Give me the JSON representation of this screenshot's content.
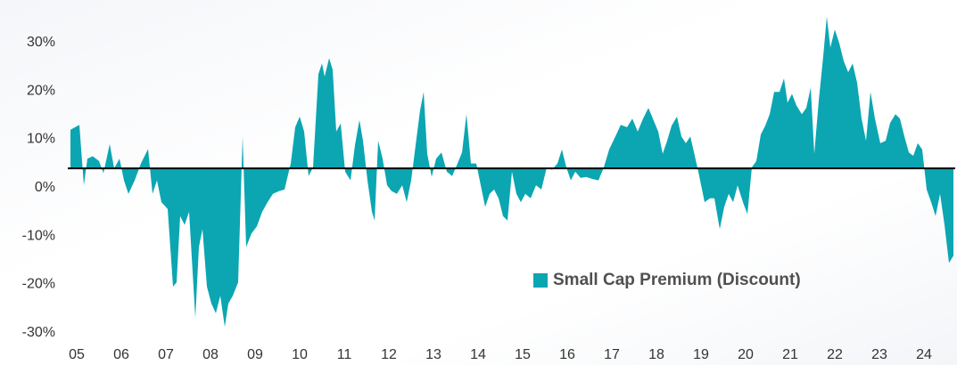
{
  "chart_data": {
    "type": "area",
    "series": [
      {
        "name": "Small Cap Premium (Discount)",
        "color": "#0ba6b2",
        "x": [
          4.86,
          5.06,
          5.16,
          5.24,
          5.36,
          5.5,
          5.6,
          5.74,
          5.84,
          5.96,
          6.06,
          6.16,
          6.3,
          6.44,
          6.6,
          6.7,
          6.8,
          6.9,
          7.04,
          7.16,
          7.24,
          7.32,
          7.42,
          7.52,
          7.66,
          7.74,
          7.82,
          7.92,
          8.02,
          8.12,
          8.22,
          8.32,
          8.4,
          8.5,
          8.62,
          8.72,
          8.8,
          8.92,
          9.04,
          9.16,
          9.28,
          9.4,
          9.54,
          9.66,
          9.8,
          9.9,
          10,
          10.1,
          10.2,
          10.3,
          10.42,
          10.5,
          10.56,
          10.66,
          10.74,
          10.82,
          10.92,
          11.02,
          11.14,
          11.24,
          11.34,
          11.42,
          11.52,
          11.62,
          11.68,
          11.76,
          11.86,
          11.96,
          12.06,
          12.18,
          12.3,
          12.4,
          12.5,
          12.6,
          12.7,
          12.78,
          12.86,
          12.96,
          13.06,
          13.18,
          13.3,
          13.42,
          13.54,
          13.64,
          13.74,
          13.84,
          13.96,
          14.06,
          14.16,
          14.26,
          14.36,
          14.46,
          14.56,
          14.66,
          14.76,
          14.86,
          14.96,
          15.06,
          15.18,
          15.3,
          15.42,
          15.54,
          15.66,
          15.78,
          15.88,
          15.98,
          16.08,
          16.18,
          16.3,
          16.42,
          16.56,
          16.7,
          16.82,
          16.94,
          17.08,
          17.2,
          17.34,
          17.46,
          17.58,
          17.7,
          17.82,
          17.92,
          18.04,
          18.14,
          18.24,
          18.34,
          18.46,
          18.56,
          18.66,
          18.76,
          18.86,
          18.96,
          19.08,
          19.2,
          19.3,
          19.42,
          19.52,
          19.62,
          19.72,
          19.82,
          19.94,
          20.04,
          20.14,
          20.24,
          20.34,
          20.44,
          20.54,
          20.64,
          20.76,
          20.86,
          20.94,
          21.04,
          21.14,
          21.26,
          21.36,
          21.46,
          21.54,
          21.64,
          21.74,
          21.82,
          21.9,
          22,
          22.1,
          22.2,
          22.3,
          22.4,
          22.5,
          22.6,
          22.7,
          22.8,
          22.9,
          23.02,
          23.14,
          23.24,
          23.36,
          23.46,
          23.56,
          23.66,
          23.76,
          23.86,
          23.96,
          24.06,
          24.16,
          24.26,
          24.36,
          24.46,
          24.56,
          24.66
        ],
        "values": [
          12,
          13,
          0.5,
          6,
          6.5,
          5.5,
          3,
          9,
          4,
          6,
          1.5,
          -1.3,
          1.5,
          5,
          8,
          -1.3,
          1.5,
          -3,
          -4.4,
          -20.5,
          -19.6,
          -5.9,
          -7.7,
          -5,
          -27,
          -12.3,
          -8.6,
          -20.5,
          -24,
          -26,
          -22.4,
          -28.8,
          -24,
          -22.4,
          -19.6,
          10.6,
          -12.3,
          -9.5,
          -8,
          -5,
          -3,
          -1.3,
          -0.7,
          -0.4,
          5,
          12.5,
          14.7,
          11.6,
          2.4,
          4.2,
          23.5,
          25.7,
          23,
          26.8,
          24.4,
          11.6,
          13.3,
          3.3,
          1.5,
          8.8,
          14,
          9.7,
          1.5,
          -5,
          -6.8,
          9.7,
          6,
          0.5,
          -0.7,
          -1.3,
          0.5,
          -3,
          1.5,
          8.8,
          16,
          19.8,
          7,
          2.2,
          6,
          7.3,
          3.3,
          2.4,
          5,
          7.3,
          15.2,
          5,
          5,
          0.5,
          -4,
          -1.3,
          -0.4,
          -2.2,
          -5.9,
          -6.8,
          3.3,
          -1.3,
          -3,
          -1.3,
          -2.2,
          0.5,
          -0.4,
          4.2,
          3.7,
          5,
          7.9,
          4.2,
          1.5,
          3.3,
          2,
          2.2,
          1.8,
          1.5,
          4.2,
          7.9,
          10.6,
          13,
          12.5,
          14.3,
          11.6,
          14.3,
          16.5,
          14.3,
          11.6,
          7,
          9.7,
          12.8,
          14.7,
          10.6,
          9.2,
          10.6,
          6.6,
          2.4,
          -3,
          -2.2,
          -2.2,
          -8.6,
          -4,
          -1.3,
          -3,
          0.5,
          -3,
          -5.5,
          4.2,
          5.5,
          11,
          12.8,
          15.2,
          19.8,
          19.8,
          22.6,
          17.6,
          19.4,
          17,
          15.2,
          16.5,
          20.7,
          7,
          18,
          27.2,
          35.4,
          29,
          32.7,
          29.9,
          26.2,
          23.9,
          25.7,
          21.7,
          14.3,
          9.7,
          19.8,
          14.3,
          9.2,
          9.7,
          13.4,
          15.2,
          14.3,
          10.6,
          7.3,
          6.6,
          9.2,
          7.9,
          -0.4,
          -3,
          -5.9,
          -1.3,
          -7.7,
          -15.6,
          -14.1
        ]
      }
    ],
    "reference_line": 4,
    "xlim": [
      4.8,
      24.7
    ],
    "xticks": [
      {
        "value": 5,
        "label": "05"
      },
      {
        "value": 6,
        "label": "06"
      },
      {
        "value": 7,
        "label": "07"
      },
      {
        "value": 8,
        "label": "08"
      },
      {
        "value": 9,
        "label": "09"
      },
      {
        "value": 10,
        "label": "10"
      },
      {
        "value": 11,
        "label": "11"
      },
      {
        "value": 12,
        "label": "12"
      },
      {
        "value": 13,
        "label": "13"
      },
      {
        "value": 14,
        "label": "14"
      },
      {
        "value": 15,
        "label": "15"
      },
      {
        "value": 16,
        "label": "16"
      },
      {
        "value": 17,
        "label": "17"
      },
      {
        "value": 18,
        "label": "18"
      },
      {
        "value": 19,
        "label": "19"
      },
      {
        "value": 20,
        "label": "20"
      },
      {
        "value": 21,
        "label": "21"
      },
      {
        "value": 22,
        "label": "22"
      },
      {
        "value": 23,
        "label": "23"
      },
      {
        "value": 24,
        "label": "24"
      }
    ],
    "ylim": [
      -31,
      37
    ],
    "yticks": [
      {
        "value": -30,
        "label": "-30%"
      },
      {
        "value": -20,
        "label": "-20%"
      },
      {
        "value": -10,
        "label": "-10%"
      },
      {
        "value": 0,
        "label": "0%"
      },
      {
        "value": 10,
        "label": "10%"
      },
      {
        "value": 20,
        "label": "20%"
      },
      {
        "value": 30,
        "label": "30%"
      }
    ],
    "legend": "lower right"
  }
}
